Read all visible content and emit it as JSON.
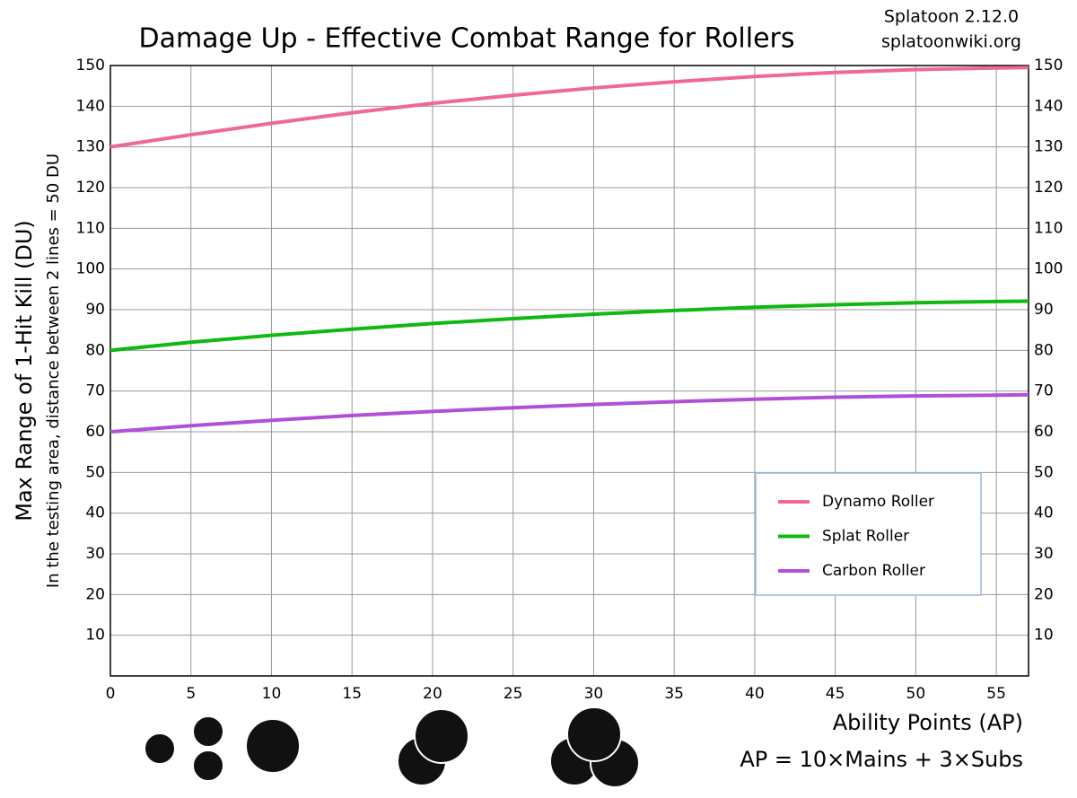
{
  "chart_data": {
    "type": "line",
    "title": "Damage Up - Effective Combat Range for Rollers",
    "notes": [
      "Splatoon 2.12.0",
      "splatoonwiki.org"
    ],
    "x_label": "Ability Points (AP)",
    "x_sublabel": "AP = 10×Mains + 3×Subs",
    "y_label": "Max Range of 1-Hit Kill (DU)",
    "y_sublabel": "In the testing area, distance between 2 lines = 50 DU",
    "x": [
      0,
      5,
      10,
      15,
      20,
      25,
      30,
      35,
      40,
      45,
      50,
      55,
      57
    ],
    "series": [
      {
        "name": "Dynamo Roller",
        "color": "#f06898",
        "values": [
          130,
          133,
          135.8,
          138.4,
          140.7,
          142.7,
          144.5,
          146,
          147.3,
          148.3,
          149,
          149.4,
          149.5
        ]
      },
      {
        "name": "Splat Roller",
        "color": "#10b810",
        "values": [
          80,
          82,
          83.7,
          85.2,
          86.6,
          87.8,
          88.9,
          89.8,
          90.6,
          91.2,
          91.7,
          92,
          92.1
        ]
      },
      {
        "name": "Carbon Roller",
        "color": "#b050d8",
        "values": [
          60,
          61.5,
          62.8,
          64,
          65,
          65.9,
          66.7,
          67.4,
          68,
          68.5,
          68.8,
          69,
          69.1
        ]
      }
    ],
    "xlim": [
      0,
      57
    ],
    "xticks": [
      0,
      5,
      10,
      15,
      20,
      25,
      30,
      35,
      40,
      45,
      50,
      55
    ],
    "ylim": [
      0,
      150
    ],
    "yticks": [
      10,
      20,
      30,
      40,
      50,
      60,
      70,
      80,
      90,
      100,
      110,
      120,
      130,
      140,
      150
    ],
    "grid": true,
    "mirror_y_axis": true,
    "legend": "lower right"
  }
}
